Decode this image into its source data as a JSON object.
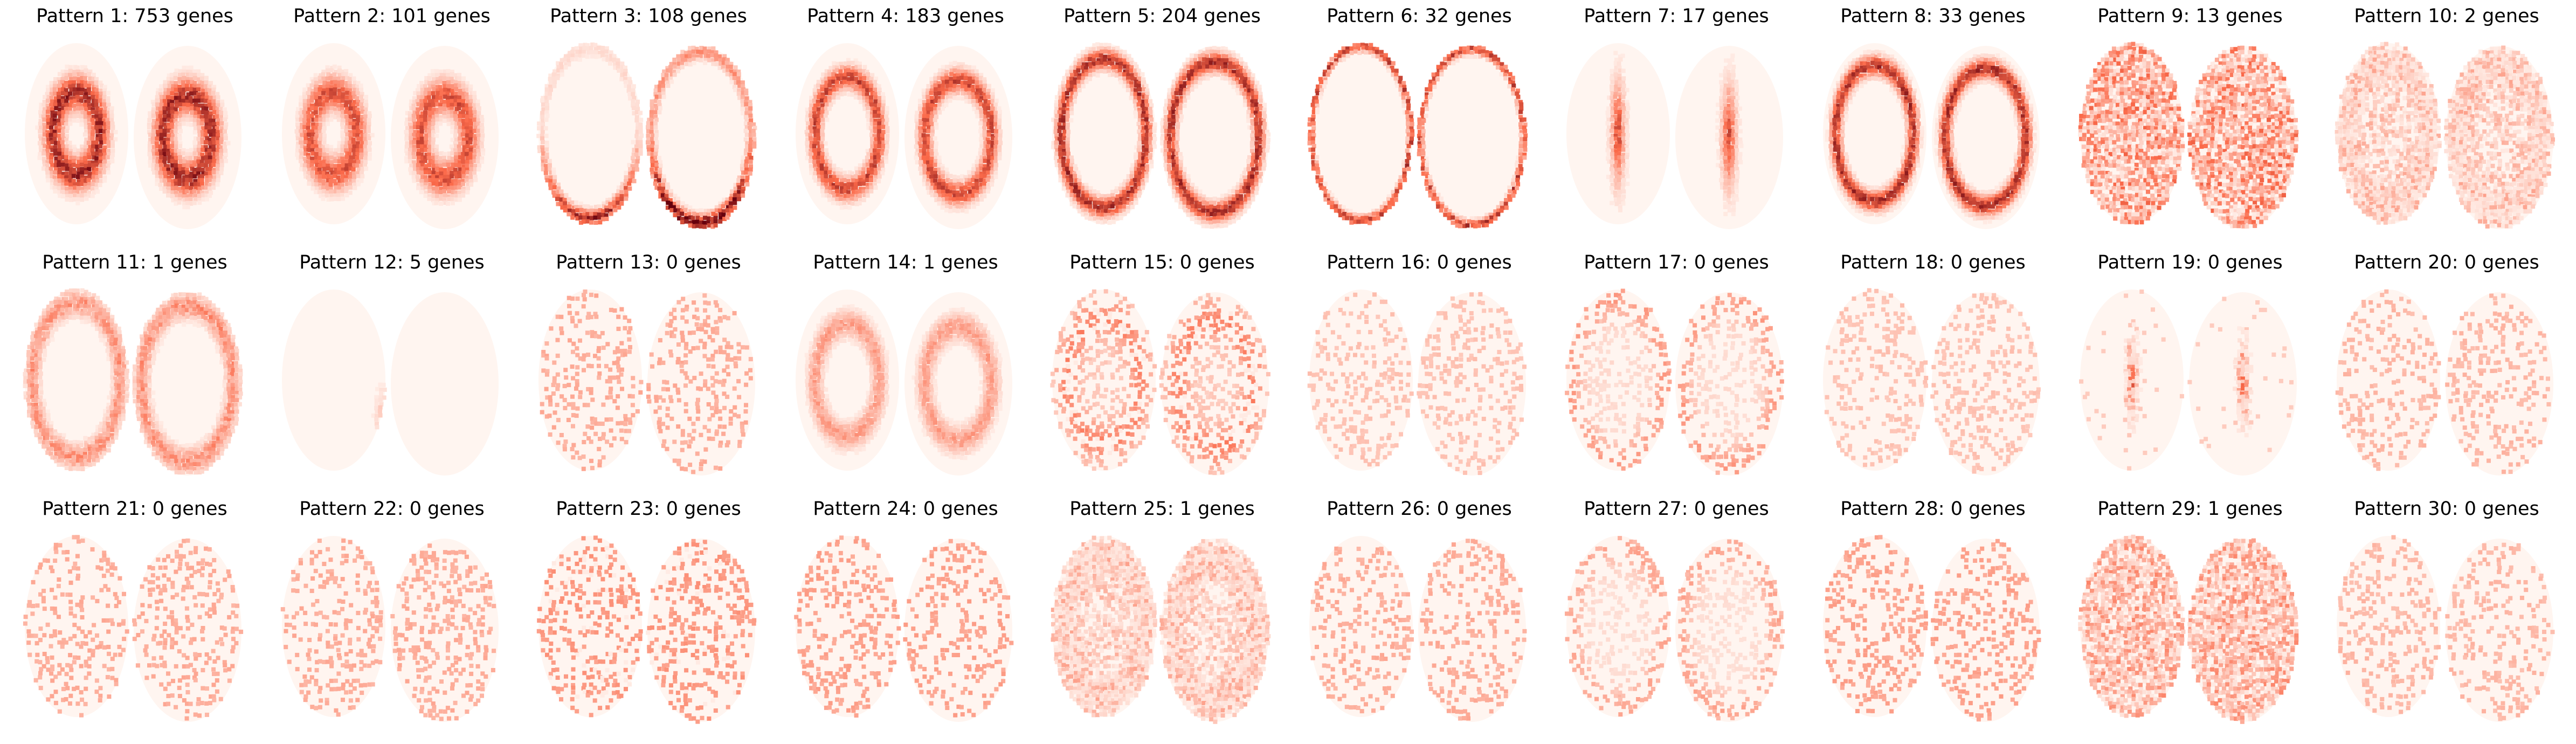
{
  "chart_data": {
    "type": "heatmap",
    "layout": {
      "rows": 3,
      "columns": 10
    },
    "colormap": "Reds",
    "colors": {
      "low": "#fff5f0",
      "mid": "#fb6a4a",
      "high": "#67000d",
      "background": "#ffffff"
    },
    "panels": [
      {
        "title": "Pattern 1: 753 genes",
        "pattern": 1,
        "genes": 753,
        "spatial_motif": "inner-core-band",
        "intensity": 0.95
      },
      {
        "title": "Pattern 2: 101 genes",
        "pattern": 2,
        "genes": 101,
        "spatial_motif": "inner-core-band",
        "intensity": 0.75
      },
      {
        "title": "Pattern 3: 108 genes",
        "pattern": 3,
        "genes": 108,
        "spatial_motif": "ventral-edge",
        "intensity": 0.85
      },
      {
        "title": "Pattern 4: 183 genes",
        "pattern": 4,
        "genes": 183,
        "spatial_motif": "ring-band",
        "intensity": 0.8
      },
      {
        "title": "Pattern 5: 204 genes",
        "pattern": 5,
        "genes": 204,
        "spatial_motif": "outer-ring",
        "intensity": 0.9
      },
      {
        "title": "Pattern 6: 32 genes",
        "pattern": 6,
        "genes": 32,
        "spatial_motif": "outer-edge-thin",
        "intensity": 0.85
      },
      {
        "title": "Pattern 7: 17 genes",
        "pattern": 7,
        "genes": 17,
        "spatial_motif": "center-line",
        "intensity": 0.75
      },
      {
        "title": "Pattern 8: 33 genes",
        "pattern": 8,
        "genes": 33,
        "spatial_motif": "outer-ring-inner",
        "intensity": 0.9
      },
      {
        "title": "Pattern 9: 13 genes",
        "pattern": 9,
        "genes": 13,
        "spatial_motif": "diffuse-dense",
        "intensity": 0.65
      },
      {
        "title": "Pattern 10: 2 genes",
        "pattern": 10,
        "genes": 2,
        "spatial_motif": "diffuse-ring",
        "intensity": 0.4
      },
      {
        "title": "Pattern 11: 1 genes",
        "pattern": 11,
        "genes": 1,
        "spatial_motif": "outer-ring-soft",
        "intensity": 0.55
      },
      {
        "title": "Pattern 12: 5 genes",
        "pattern": 12,
        "genes": 5,
        "spatial_motif": "midline-lower",
        "intensity": 0.6
      },
      {
        "title": "Pattern 13: 0 genes",
        "pattern": 13,
        "genes": 0,
        "spatial_motif": "sparse-noise",
        "intensity": 0.35
      },
      {
        "title": "Pattern 14: 1 genes",
        "pattern": 14,
        "genes": 1,
        "spatial_motif": "ring-band-soft",
        "intensity": 0.55
      },
      {
        "title": "Pattern 15: 0 genes",
        "pattern": 15,
        "genes": 0,
        "spatial_motif": "sparse-ring",
        "intensity": 0.5
      },
      {
        "title": "Pattern 16: 0 genes",
        "pattern": 16,
        "genes": 0,
        "spatial_motif": "sparse-noise",
        "intensity": 0.25
      },
      {
        "title": "Pattern 17: 0 genes",
        "pattern": 17,
        "genes": 0,
        "spatial_motif": "sparse-edge",
        "intensity": 0.4
      },
      {
        "title": "Pattern 18: 0 genes",
        "pattern": 18,
        "genes": 0,
        "spatial_motif": "sparse-noise",
        "intensity": 0.25
      },
      {
        "title": "Pattern 19: 0 genes",
        "pattern": 19,
        "genes": 0,
        "spatial_motif": "center-spots",
        "intensity": 0.55
      },
      {
        "title": "Pattern 20: 0 genes",
        "pattern": 20,
        "genes": 0,
        "spatial_motif": "sparse-noise",
        "intensity": 0.3
      },
      {
        "title": "Pattern 21: 0 genes",
        "pattern": 21,
        "genes": 0,
        "spatial_motif": "sparse-noise",
        "intensity": 0.35
      },
      {
        "title": "Pattern 22: 0 genes",
        "pattern": 22,
        "genes": 0,
        "spatial_motif": "sparse-noise",
        "intensity": 0.35
      },
      {
        "title": "Pattern 23: 0 genes",
        "pattern": 23,
        "genes": 0,
        "spatial_motif": "sparse-noise",
        "intensity": 0.45
      },
      {
        "title": "Pattern 24: 0 genes",
        "pattern": 24,
        "genes": 0,
        "spatial_motif": "sparse-noise",
        "intensity": 0.4
      },
      {
        "title": "Pattern 25: 1 genes",
        "pattern": 25,
        "genes": 1,
        "spatial_motif": "diffuse-ring",
        "intensity": 0.4
      },
      {
        "title": "Pattern 26: 0 genes",
        "pattern": 26,
        "genes": 0,
        "spatial_motif": "sparse-noise",
        "intensity": 0.35
      },
      {
        "title": "Pattern 27: 0 genes",
        "pattern": 27,
        "genes": 0,
        "spatial_motif": "sparse-edge",
        "intensity": 0.35
      },
      {
        "title": "Pattern 28: 0 genes",
        "pattern": 28,
        "genes": 0,
        "spatial_motif": "sparse-noise",
        "intensity": 0.4
      },
      {
        "title": "Pattern 29: 1 genes",
        "pattern": 29,
        "genes": 1,
        "spatial_motif": "diffuse-dense",
        "intensity": 0.5
      },
      {
        "title": "Pattern 30: 0 genes",
        "pattern": 30,
        "genes": 0,
        "spatial_motif": "sparse-noise",
        "intensity": 0.3
      }
    ]
  }
}
